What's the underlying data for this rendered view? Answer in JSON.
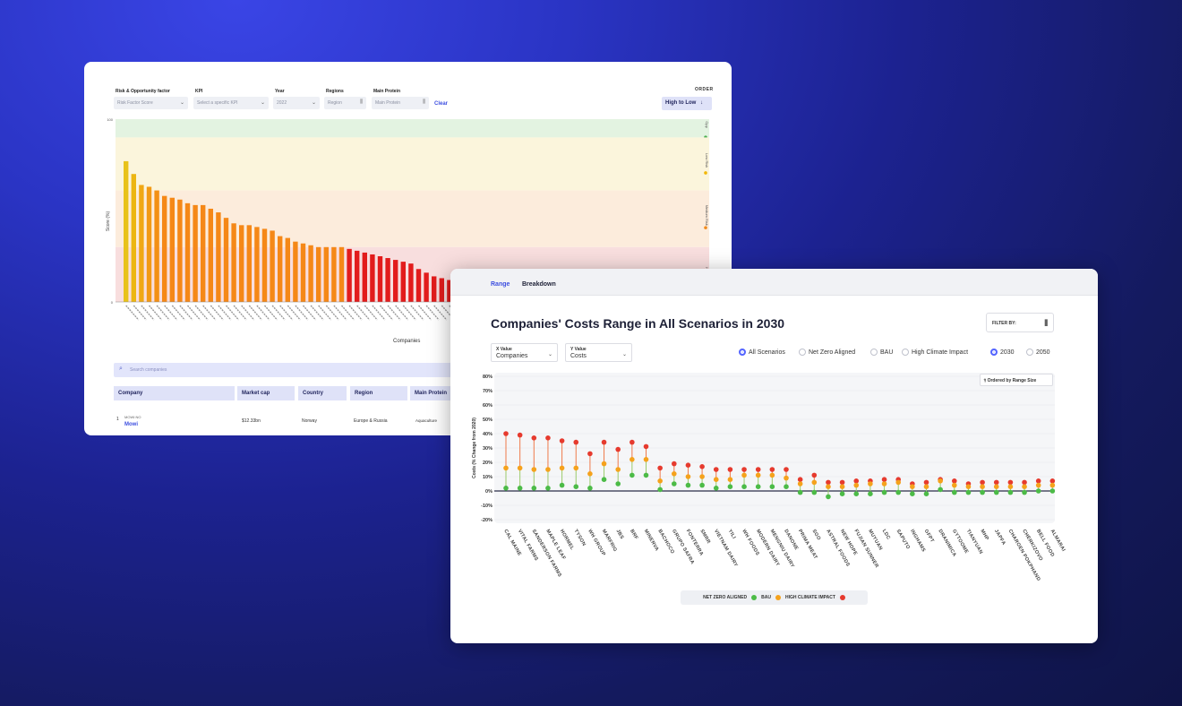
{
  "back_panel": {
    "filters": {
      "risk_label": "Risk & Opportunity factor",
      "risk_value": "Risk Factor Score",
      "kpi_label": "KPI",
      "kpi_placeholder": "Select a specific KPI",
      "year_label": "Year",
      "year_value": "2022",
      "regions_label": "Regions",
      "regions_value": "Region",
      "protein_label": "Main Protein",
      "protein_value": "Main Protein",
      "clear": "Clear",
      "order_label": "ORDER",
      "order_value": "High to Low"
    },
    "bands": [
      {
        "label": "Opp",
        "color": "#4caf50"
      },
      {
        "label": "Low Risk",
        "color": "#f2b705"
      },
      {
        "label": "Medium Risk",
        "color": "#f08a1c"
      },
      {
        "label": "High",
        "color": "#e02020"
      }
    ],
    "search_placeholder": "Search companies",
    "table": {
      "headers": [
        "Company",
        "Market cap",
        "Country",
        "Region",
        "Main Protein"
      ],
      "row": {
        "rank": "1",
        "ticker": "MOWI:NO",
        "company": "Mowi",
        "market_cap": "$12.33bn",
        "country": "Norway",
        "region": "Europe & Russia",
        "protein": "Aquaculture"
      }
    }
  },
  "front_panel": {
    "tabs": [
      "Range",
      "Breakdown"
    ],
    "title": "Companies' Costs Range in All Scenarios in 2030",
    "filter_by": "FILTER BY:",
    "x_select": {
      "label": "X Value",
      "value": "Companies"
    },
    "y_select": {
      "label": "Y Value",
      "value": "Costs"
    },
    "scenario_radios": [
      "All Scenarios",
      "Net Zero Aligned",
      "BAU",
      "High Climate Impact"
    ],
    "year_radios": [
      "2030",
      "2050"
    ],
    "ordered_by": "Ordered by Range Size",
    "legend": [
      {
        "label": "NET ZERO ALIGNED",
        "color": "#4cbb47"
      },
      {
        "label": "BAU",
        "color": "#f5a21c"
      },
      {
        "label": "HIGH CLIMATE IMPACT",
        "color": "#e63a2e"
      }
    ]
  },
  "chart_data": [
    {
      "type": "bar",
      "ylabel": "Score (%)",
      "xlabel": "Companies",
      "ylim": [
        0,
        100
      ],
      "ticks": [
        0,
        100
      ],
      "values": [
        77,
        70,
        64,
        63,
        61,
        58,
        57,
        56,
        54,
        53,
        53,
        51,
        49,
        46,
        43,
        42,
        42,
        41,
        40,
        39,
        36,
        35,
        33,
        32,
        31,
        30,
        30,
        30,
        30,
        29,
        28,
        27,
        26,
        25,
        24,
        23,
        22,
        21,
        18,
        16,
        14,
        13,
        12,
        10,
        9
      ],
      "bar_colors": [
        "#e8c21a",
        "#ecb612",
        "#f0a815",
        "#f29a15",
        "#f39014",
        "#f58817",
        "#f58817",
        "#f58817",
        "#f58817",
        "#f58817",
        "#f58817",
        "#f58817",
        "#f58817",
        "#f58817",
        "#f58817",
        "#f58817",
        "#f58817",
        "#f58817",
        "#f58817",
        "#f58817",
        "#f58817",
        "#f58817",
        "#f58817",
        "#f58817",
        "#f58817",
        "#f58817",
        "#f58817",
        "#f58817",
        "#f58817",
        "#e21c1c",
        "#e21c1c",
        "#e21c1c",
        "#e21c1c",
        "#e21c1c",
        "#e21c1c",
        "#e21c1c",
        "#e21c1c",
        "#e21c1c",
        "#e21c1c",
        "#e21c1c",
        "#e21c1c",
        "#e21c1c",
        "#e21c1c",
        "#e21c1c",
        "#e21c1c"
      ],
      "band_ranges": [
        [
          90,
          100
        ],
        [
          61,
          90
        ],
        [
          30,
          61
        ],
        [
          0,
          30
        ]
      ]
    },
    {
      "type": "range-dot",
      "ylabel": "Costs (% Change from 2020)",
      "ylim": [
        -20,
        80
      ],
      "yticks": [
        "80%",
        "70%",
        "60%",
        "50%",
        "40%",
        "30%",
        "20%",
        "10%",
        "0%",
        "-10%",
        "-20%"
      ],
      "categories": [
        "CAL MAINE",
        "VITAL FARMS",
        "SANDERSON FARMS",
        "MAPLE LEAF",
        "HORMEL",
        "TYSON",
        "WH GROUP",
        "MARFRIG",
        "JBS",
        "BRF",
        "MINERVA",
        "BACHOCO",
        "GRUPO SAFRA",
        "FONTERRA",
        "SMRR",
        "VIETNAM DAIRY",
        "YILI",
        "WH FOODS",
        "MODERN DAIRY",
        "MENGNIU DAIRY",
        "DANONE",
        "PRIMA MEAT",
        "SGO",
        "ASTRAL FOODS",
        "NEW HOPE",
        "FUJIAN SUNNER",
        "MUYUAN",
        "LDC",
        "SAPUTO",
        "INGHAMS",
        "GFPT",
        "DRANIMICA",
        "GYTOOME",
        "TIANYUAN",
        "MHP",
        "JAPFA",
        "CHAROEN POKPHAND",
        "CHERKIZOVO",
        "BELL FOOD",
        "ALMARAI"
      ],
      "series": [
        {
          "name": "High Climate Impact",
          "values": [
            40,
            39,
            37,
            37,
            35,
            34,
            26,
            34,
            29,
            34,
            31,
            16,
            19,
            18,
            17,
            15,
            15,
            15,
            15,
            15,
            15,
            8,
            11,
            6,
            6,
            7,
            7,
            8,
            8,
            5,
            6,
            8,
            7,
            5,
            6,
            6,
            6,
            6,
            7,
            7
          ]
        },
        {
          "name": "BAU",
          "values": [
            16,
            16,
            15,
            15,
            16,
            16,
            12,
            19,
            15,
            22,
            22,
            7,
            12,
            10,
            10,
            8,
            8,
            11,
            11,
            11,
            9,
            5,
            6,
            3,
            3,
            4,
            5,
            5,
            6,
            3,
            3,
            7,
            4,
            3,
            3,
            3,
            3,
            3,
            4,
            4
          ]
        },
        {
          "name": "Net Zero Aligned",
          "values": [
            2,
            2,
            2,
            2,
            4,
            3,
            2,
            8,
            5,
            11,
            11,
            1,
            5,
            4,
            4,
            2,
            3,
            3,
            3,
            3,
            3,
            -1,
            -1,
            -4,
            -2,
            -2,
            -2,
            -1,
            -1,
            -2,
            -2,
            1,
            -1,
            -1,
            -1,
            -1,
            -1,
            -1,
            0,
            0
          ]
        }
      ]
    }
  ]
}
